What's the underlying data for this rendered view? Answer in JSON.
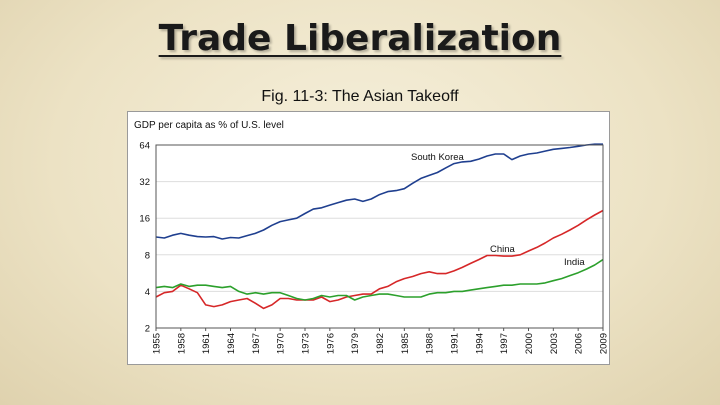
{
  "slide": {
    "title": "Trade Liberalization",
    "caption": "Fig. 11-3: The Asian Takeoff"
  },
  "chart_data": {
    "type": "line",
    "title": "",
    "ylabel": "GDP per capita as % of U.S. level",
    "xlabel": "",
    "y_scale": "log2",
    "ylim": [
      2,
      64
    ],
    "xlim": [
      1955,
      2009
    ],
    "y_ticks": [
      2,
      4,
      8,
      16,
      32,
      64
    ],
    "x_ticks": [
      1955,
      1958,
      1961,
      1964,
      1967,
      1970,
      1973,
      1976,
      1979,
      1982,
      1985,
      1988,
      1991,
      1994,
      1997,
      2000,
      2003,
      2006,
      2009
    ],
    "series": [
      {
        "name": "South Korea",
        "label": "South Korea",
        "color": "#1f3f8f",
        "x": [
          1955,
          1956,
          1957,
          1958,
          1959,
          1960,
          1961,
          1962,
          1963,
          1964,
          1965,
          1966,
          1967,
          1968,
          1969,
          1970,
          1971,
          1972,
          1973,
          1974,
          1975,
          1976,
          1977,
          1978,
          1979,
          1980,
          1981,
          1982,
          1983,
          1984,
          1985,
          1986,
          1987,
          1988,
          1989,
          1990,
          1991,
          1992,
          1993,
          1994,
          1995,
          1996,
          1997,
          1998,
          1999,
          2000,
          2001,
          2002,
          2003,
          2004,
          2005,
          2006,
          2007,
          2008,
          2009
        ],
        "values": [
          11.2,
          11.0,
          11.6,
          12.0,
          11.6,
          11.3,
          11.2,
          11.3,
          10.8,
          11.1,
          11.0,
          11.5,
          12.0,
          12.8,
          14.0,
          15.0,
          15.5,
          16.0,
          17.5,
          19.0,
          19.5,
          20.5,
          21.5,
          22.5,
          23.0,
          22.0,
          23.0,
          25.0,
          26.5,
          27.0,
          28.0,
          31.0,
          34.0,
          36.0,
          38.0,
          41.5,
          45.0,
          46.5,
          47.0,
          49.0,
          52.0,
          54.0,
          54.0,
          48.5,
          52.0,
          54.0,
          55.0,
          57.0,
          59.0,
          60.0,
          61.0,
          62.5,
          64.0,
          65.0,
          65.0
        ]
      },
      {
        "name": "China",
        "label": "China",
        "color": "#d62728",
        "x": [
          1955,
          1956,
          1957,
          1958,
          1959,
          1960,
          1961,
          1962,
          1963,
          1964,
          1965,
          1966,
          1967,
          1968,
          1969,
          1970,
          1971,
          1972,
          1973,
          1974,
          1975,
          1976,
          1977,
          1978,
          1979,
          1980,
          1981,
          1982,
          1983,
          1984,
          1985,
          1986,
          1987,
          1988,
          1989,
          1990,
          1991,
          1992,
          1993,
          1994,
          1995,
          1996,
          1997,
          1998,
          1999,
          2000,
          2001,
          2002,
          2003,
          2004,
          2005,
          2006,
          2007,
          2008,
          2009
        ],
        "values": [
          3.6,
          3.9,
          4.0,
          4.5,
          4.2,
          3.9,
          3.1,
          3.0,
          3.1,
          3.3,
          3.4,
          3.5,
          3.2,
          2.9,
          3.1,
          3.5,
          3.5,
          3.4,
          3.4,
          3.4,
          3.6,
          3.3,
          3.4,
          3.6,
          3.7,
          3.8,
          3.8,
          4.2,
          4.4,
          4.8,
          5.1,
          5.3,
          5.6,
          5.8,
          5.6,
          5.6,
          5.9,
          6.3,
          6.8,
          7.3,
          7.9,
          7.9,
          7.8,
          7.8,
          8.0,
          8.6,
          9.2,
          10.0,
          11.0,
          11.8,
          12.8,
          14.0,
          15.5,
          17.0,
          18.5
        ]
      },
      {
        "name": "India",
        "label": "India",
        "color": "#2ca02c",
        "x": [
          1955,
          1956,
          1957,
          1958,
          1959,
          1960,
          1961,
          1962,
          1963,
          1964,
          1965,
          1966,
          1967,
          1968,
          1969,
          1970,
          1971,
          1972,
          1973,
          1974,
          1975,
          1976,
          1977,
          1978,
          1979,
          1980,
          1981,
          1982,
          1983,
          1984,
          1985,
          1986,
          1987,
          1988,
          1989,
          1990,
          1991,
          1992,
          1993,
          1994,
          1995,
          1996,
          1997,
          1998,
          1999,
          2000,
          2001,
          2002,
          2003,
          2004,
          2005,
          2006,
          2007,
          2008,
          2009
        ],
        "values": [
          4.3,
          4.4,
          4.3,
          4.6,
          4.4,
          4.5,
          4.5,
          4.4,
          4.3,
          4.4,
          4.0,
          3.8,
          3.9,
          3.8,
          3.9,
          3.9,
          3.7,
          3.5,
          3.4,
          3.5,
          3.7,
          3.6,
          3.7,
          3.7,
          3.4,
          3.6,
          3.7,
          3.8,
          3.8,
          3.7,
          3.6,
          3.6,
          3.6,
          3.8,
          3.9,
          3.9,
          4.0,
          4.0,
          4.1,
          4.2,
          4.3,
          4.4,
          4.5,
          4.5,
          4.6,
          4.6,
          4.6,
          4.7,
          4.9,
          5.1,
          5.4,
          5.7,
          6.1,
          6.6,
          7.3
        ]
      }
    ]
  }
}
